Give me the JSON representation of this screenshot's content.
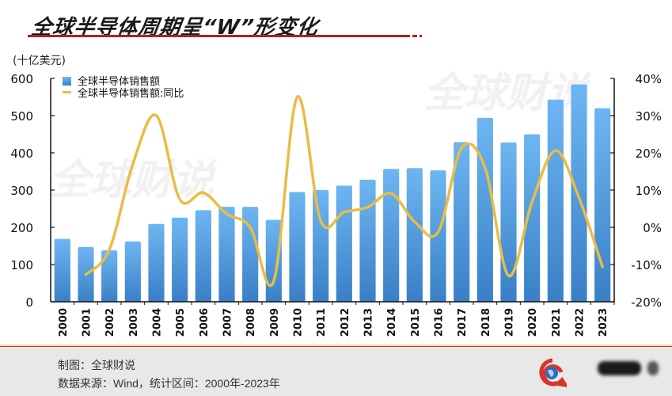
{
  "header": {
    "title": "全球半导体周期呈“W”形变化",
    "unit_label": "(十亿美元)"
  },
  "colors": {
    "bar": "#4a97de",
    "bar_light": "#6db6f2",
    "line": "#e9bd45",
    "accent_red": "#b21f24",
    "footer_bg": "#e8e8e8"
  },
  "watermark": "全球财说",
  "footer": {
    "credit": "制图：全球财说",
    "source": "数据来源：Wind，统计区间：2000年-2023年"
  },
  "chart_data": {
    "type": "bar+line",
    "title": "全球半导体周期呈“W”形变化",
    "xlabel": "",
    "ylabel": "(十亿美元)",
    "ylabel_right": "",
    "categories": [
      "2000",
      "2001",
      "2002",
      "2003",
      "2004",
      "2005",
      "2006",
      "2007",
      "2008",
      "2009",
      "2010",
      "2011",
      "2012",
      "2013",
      "2014",
      "2015",
      "2016",
      "2017",
      "2018",
      "2019",
      "2020",
      "2021",
      "2022",
      "2023"
    ],
    "series": [
      {
        "name": "全球半导体销售额",
        "type": "bar",
        "axis": "left",
        "values": [
          169,
          147,
          138,
          162,
          209,
          226,
          246,
          255,
          255,
          220,
          295,
          300,
          312,
          328,
          357,
          359,
          353,
          429,
          494,
          428,
          450,
          543,
          584,
          520
        ]
      },
      {
        "name": "全球半导体销售额:同比",
        "type": "line",
        "axis": "right",
        "unit": "%",
        "values": [
          null,
          -12.7,
          -6.0,
          17.0,
          30.0,
          7.5,
          9.3,
          3.6,
          0.0,
          -14.5,
          35.0,
          1.8,
          4.1,
          5.4,
          9.1,
          1.5,
          -1.3,
          21.3,
          16.0,
          -13.0,
          6.8,
          20.6,
          7.9,
          -10.6
        ]
      }
    ],
    "ylim": [
      0,
      600
    ],
    "yticks": [
      "0",
      "100",
      "200",
      "300",
      "400",
      "500",
      "600"
    ],
    "ylim_right": [
      -20,
      40
    ],
    "yticks_right": [
      "-20%",
      "-10%",
      "0%",
      "10%",
      "20%",
      "30%",
      "40%"
    ],
    "legend": [
      "全球半导体销售额",
      "全球半导体销售额:同比"
    ],
    "legend_position": "top-left",
    "grid": false
  }
}
